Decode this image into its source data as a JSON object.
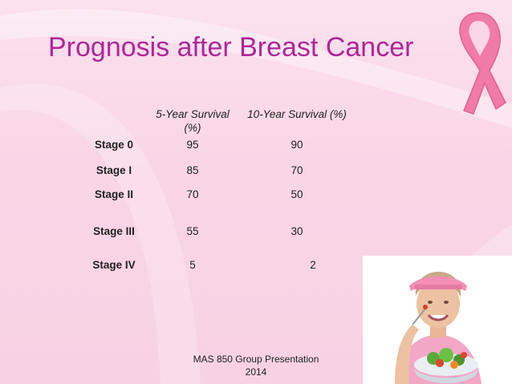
{
  "title": "Prognosis after Breast Cancer",
  "table": {
    "header_5yr": "5-Year Survival (%)",
    "header_10yr": "10-Year Survival (%)",
    "rows": [
      {
        "stage": "Stage 0",
        "five_year": "95",
        "ten_year": "90"
      },
      {
        "stage": "Stage I",
        "five_year": "85",
        "ten_year": "70"
      },
      {
        "stage": "Stage II",
        "five_year": "70",
        "ten_year": "50"
      },
      {
        "stage": "Stage III",
        "five_year": "55",
        "ten_year": "30"
      },
      {
        "stage": "Stage IV",
        "five_year": "5",
        "ten_year": "2"
      }
    ]
  },
  "footer": {
    "line1": "MAS 850 Group Presentation",
    "line2": "2014"
  },
  "colors": {
    "title": "#b0269a",
    "background": "#f9d5e6",
    "ribbon": "#f07aa8"
  },
  "images": {
    "ribbon": "pink-ribbon-icon",
    "photo": "woman-eating-salad-photo"
  }
}
